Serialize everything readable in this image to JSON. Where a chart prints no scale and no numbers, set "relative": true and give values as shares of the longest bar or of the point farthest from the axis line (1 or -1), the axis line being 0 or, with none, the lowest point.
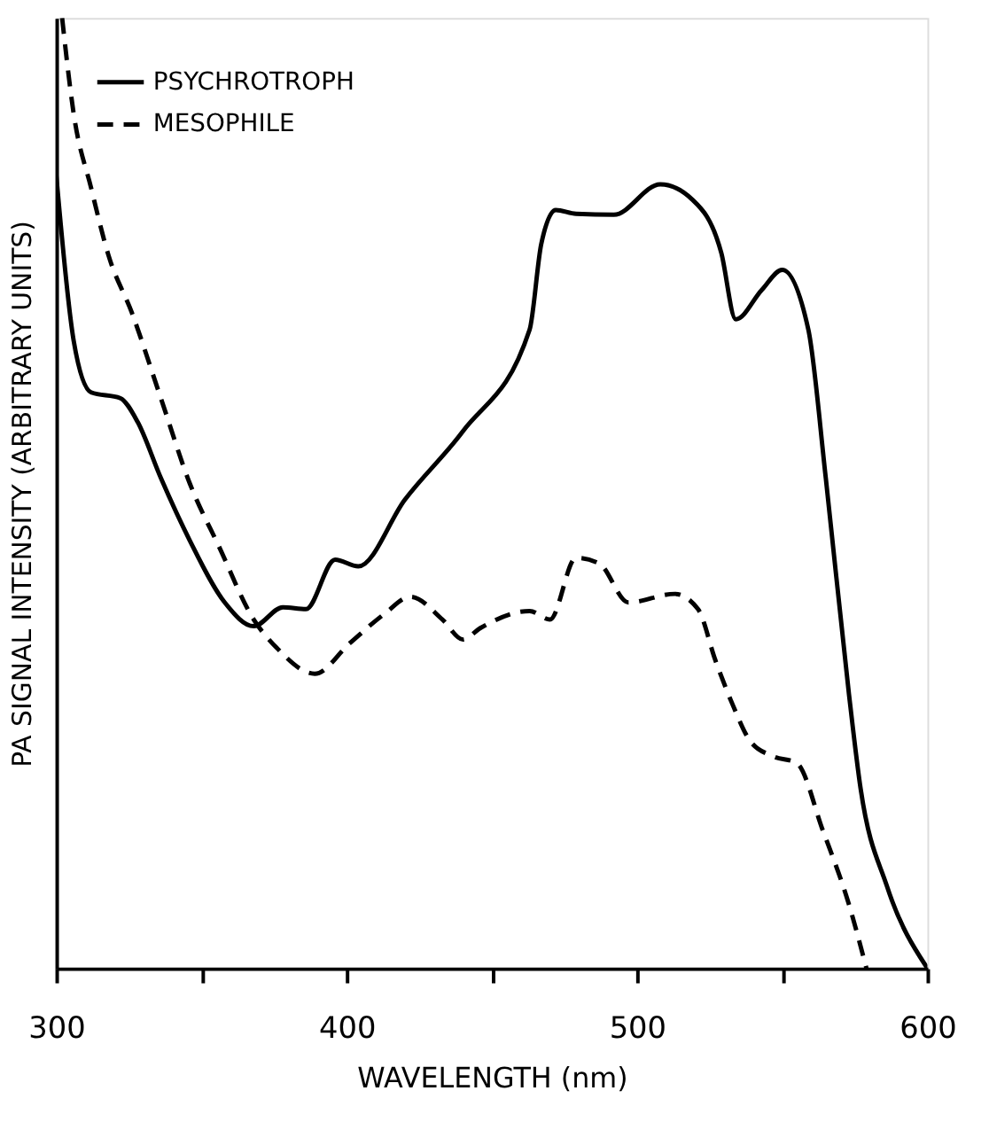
{
  "chart_data": {
    "type": "line",
    "relative": true,
    "xlabel": "WAVELENGTH (nm)",
    "ylabel": "PA SIGNAL INTENSITY (ARBITRARY UNITS)",
    "legend": "top left",
    "grid": false,
    "xlim": [
      300,
      600
    ],
    "xticks": [
      300,
      {
        "value": 350,
        "label": null
      },
      400,
      {
        "value": 450,
        "label": null
      },
      500,
      {
        "value": 550,
        "label": null
      },
      600
    ],
    "series": [
      {
        "name": "PSYCHROTROPH",
        "color": "#000000",
        "line_style": "solid",
        "x": [
          300,
          306,
          312,
          322,
          328,
          336,
          346,
          358,
          368,
          378,
          386,
          396,
          404,
          420,
          440,
          463,
          467,
          472,
          479,
          492,
          508,
          519,
          529,
          534,
          543,
          550,
          559,
          565,
          573,
          577,
          586,
          600
        ],
        "values": [
          0.834,
          0.66,
          0.606,
          0.6,
          0.575,
          0.516,
          0.45,
          0.385,
          0.36,
          0.38,
          0.378,
          0.43,
          0.423,
          0.493,
          0.565,
          0.672,
          0.762,
          0.798,
          0.794,
          0.793,
          0.825,
          0.809,
          0.753,
          0.683,
          0.714,
          0.735,
          0.672,
          0.516,
          0.288,
          0.189,
          0.087,
          0.0
        ]
      },
      {
        "name": "MESOPHILE",
        "color": "#000000",
        "line_style": "dashed",
        "x": [
          302,
          306,
          312,
          318,
          326,
          336,
          346,
          356,
          368,
          376,
          389,
          401,
          413,
          422,
          433,
          440,
          446,
          463,
          470,
          479,
          487,
          497,
          513,
          521,
          527,
          533,
          539,
          547,
          555,
          564,
          573,
          579
        ],
        "values": [
          1.0,
          0.899,
          0.821,
          0.75,
          0.69,
          0.6,
          0.51,
          0.444,
          0.367,
          0.337,
          0.31,
          0.342,
          0.373,
          0.391,
          0.367,
          0.346,
          0.358,
          0.376,
          0.367,
          0.432,
          0.426,
          0.385,
          0.394,
          0.378,
          0.324,
          0.277,
          0.239,
          0.223,
          0.216,
          0.145,
          0.067,
          0.0
        ]
      }
    ]
  }
}
